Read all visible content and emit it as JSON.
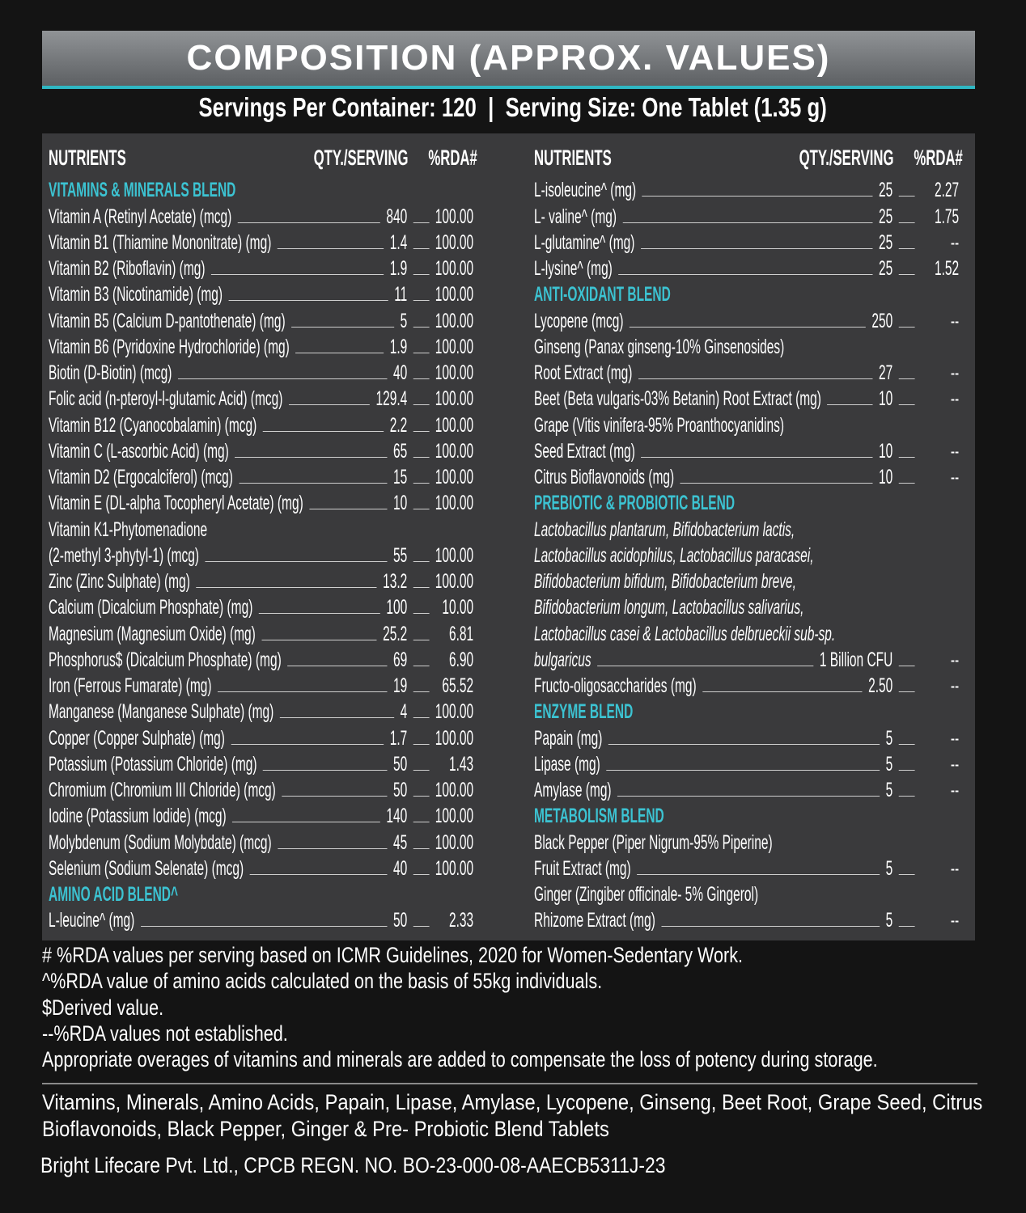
{
  "header": {
    "title": "COMPOSITION (APPROX. VALUES)",
    "subtitle": "Servings Per Container: 120  |  Serving Size: One Tablet (1.35 g)"
  },
  "table": {
    "columns": [
      {
        "headers": [
          "NUTRIENTS",
          "QTY./SERVING",
          "%RDA#"
        ],
        "rows": [
          {
            "section": "VITAMINS & MINERALS BLEND"
          },
          {
            "name": "Vitamin A (Retinyl Acetate) (mcg)",
            "qty": "840",
            "rda": "100.00"
          },
          {
            "name": "Vitamin B1 (Thiamine Mononitrate) (mg)",
            "qty": "1.4",
            "rda": "100.00"
          },
          {
            "name": "Vitamin B2 (Riboflavin) (mg)",
            "qty": "1.9",
            "rda": "100.00"
          },
          {
            "name": "Vitamin B3 (Nicotinamide) (mg)",
            "qty": "11",
            "rda": "100.00"
          },
          {
            "name": "Vitamin B5 (Calcium D-pantothenate) (mg)",
            "qty": "5",
            "rda": "100.00"
          },
          {
            "name": "Vitamin B6 (Pyridoxine Hydrochloride) (mg)",
            "qty": "1.9",
            "rda": "100.00"
          },
          {
            "name": "Biotin (D-Biotin) (mcg)",
            "qty": "40",
            "rda": "100.00"
          },
          {
            "name": "Folic acid (n-pteroyl-l-glutamic Acid) (mcg)",
            "qty": "129.4",
            "rda": "100.00"
          },
          {
            "name": "Vitamin B12 (Cyanocobalamin) (mcg)",
            "qty": "2.2",
            "rda": "100.00"
          },
          {
            "name": "Vitamin C (L-ascorbic Acid) (mg)",
            "qty": "65",
            "rda": "100.00"
          },
          {
            "name": "Vitamin D2 (Ergocalciferol) (mcg)",
            "qty": "15",
            "rda": "100.00"
          },
          {
            "name": "Vitamin E (DL-alpha Tocopheryl Acetate) (mg)",
            "qty": "10",
            "rda": "100.00"
          },
          {
            "name": "Vitamin K1-Phytomenadione"
          },
          {
            "name": "(2-methyl 3-phytyl-1) (mcg)",
            "qty": "55",
            "rda": "100.00"
          },
          {
            "name": "Zinc (Zinc Sulphate) (mg)",
            "qty": "13.2",
            "rda": "100.00"
          },
          {
            "name": "Calcium (Dicalcium Phosphate) (mg)",
            "qty": "100",
            "rda": "10.00"
          },
          {
            "name": "Magnesium (Magnesium Oxide) (mg)",
            "qty": "25.2",
            "rda": "6.81"
          },
          {
            "name": "Phosphorus$ (Dicalcium Phosphate) (mg)",
            "qty": "69",
            "rda": "6.90"
          },
          {
            "name": "Iron (Ferrous Fumarate) (mg)",
            "qty": "19",
            "rda": "65.52"
          },
          {
            "name": "Manganese (Manganese Sulphate) (mg)",
            "qty": "4",
            "rda": "100.00"
          },
          {
            "name": "Copper (Copper Sulphate) (mg)",
            "qty": "1.7",
            "rda": "100.00"
          },
          {
            "name": "Potassium (Potassium Chloride) (mg)",
            "qty": "50",
            "rda": "1.43"
          },
          {
            "name": "Chromium (Chromium III Chloride) (mcg)",
            "qty": "50",
            "rda": "100.00"
          },
          {
            "name": "Iodine (Potassium Iodide) (mcg)",
            "qty": "140",
            "rda": "100.00"
          },
          {
            "name": "Molybdenum (Sodium Molybdate) (mcg)",
            "qty": "45",
            "rda": "100.00"
          },
          {
            "name": "Selenium (Sodium Selenate) (mcg)",
            "qty": "40",
            "rda": "100.00"
          },
          {
            "section": "AMINO ACID BLEND^"
          },
          {
            "name": "L-leucine^ (mg)",
            "qty": "50",
            "rda": "2.33"
          }
        ]
      },
      {
        "headers": [
          "NUTRIENTS",
          "QTY./SERVING",
          "%RDA#"
        ],
        "rows": [
          {
            "name": "L-isoleucine^ (mg)",
            "qty": "25",
            "rda": "2.27"
          },
          {
            "name": "L- valine^ (mg)",
            "qty": "25",
            "rda": "1.75"
          },
          {
            "name": "L-glutamine^ (mg)",
            "qty": "25",
            "rda": "--"
          },
          {
            "name": "L-lysine^ (mg)",
            "qty": "25",
            "rda": "1.52"
          },
          {
            "section": "ANTI-OXIDANT BLEND"
          },
          {
            "name": "Lycopene (mcg)",
            "qty": "250",
            "rda": "--"
          },
          {
            "name": "Ginseng (Panax ginseng-10% Ginsenosides)"
          },
          {
            "name": "Root Extract (mg)",
            "qty": "27",
            "rda": "--"
          },
          {
            "name": "Beet (Beta vulgaris-03% Betanin) Root Extract (mg)",
            "qty": "10",
            "rda": "--"
          },
          {
            "name": "Grape (Vitis vinifera-95% Proanthocyanidins)"
          },
          {
            "name": "Seed Extract (mg)",
            "qty": "10",
            "rda": "--"
          },
          {
            "name": "Citrus Bioflavonoids (mg)",
            "qty": "10",
            "rda": "--"
          },
          {
            "section": "PREBIOTIC & PROBIOTIC BLEND"
          },
          {
            "name": "Lactobacillus plantarum, Bifidobacterium lactis,",
            "italic": true
          },
          {
            "name": "Lactobacillus acidophilus, Lactobacillus paracasei,",
            "italic": true
          },
          {
            "name": "Bifidobacterium bifidum, Bifidobacterium breve,",
            "italic": true
          },
          {
            "name": "Bifidobacterium longum, Lactobacillus salivarius,",
            "italic": true
          },
          {
            "name": "Lactobacillus casei & Lactobacillus delbrueckii sub-sp.",
            "italic": true
          },
          {
            "name": "bulgaricus",
            "italic": true,
            "qty": "1 Billion CFU",
            "rda": "--"
          },
          {
            "name": "Fructo-oligosaccharides (mg)",
            "qty": "2.50",
            "rda": "--"
          },
          {
            "section": "ENZYME BLEND"
          },
          {
            "name": "Papain (mg)",
            "qty": "5",
            "rda": "--"
          },
          {
            "name": "Lipase (mg)",
            "qty": "5",
            "rda": "--"
          },
          {
            "name": "Amylase (mg)",
            "qty": "5",
            "rda": "--"
          },
          {
            "section": "METABOLISM BLEND"
          },
          {
            "name": "Black Pepper (Piper Nigrum-95% Piperine)"
          },
          {
            "name": "Fruit Extract (mg)",
            "qty": "5",
            "rda": "--"
          },
          {
            "name": "Ginger (Zingiber officinale- 5% Gingerol)"
          },
          {
            "name": "Rhizome Extract (mg)",
            "qty": "5",
            "rda": "--"
          }
        ]
      }
    ]
  },
  "footnotes": [
    "# %RDA values per serving based on ICMR Guidelines, 2020 for Women-Sedentary Work.",
    "^%RDA value of amino acids calculated on the basis of 55kg individuals.",
    "$Derived value.",
    "--%RDA values not established.",
    "Appropriate overages of vitamins and minerals are added to compensate the loss of potency during storage."
  ],
  "ingredients": [
    "Vitamins, Minerals, Amino Acids, Papain, Lipase, Amylase, Lycopene, Ginseng, Beet Root, Grape Seed, Citrus",
    "Bioflavonoids, Black Pepper, Ginger & Pre- Probiotic Blend Tablets"
  ],
  "company": "Bright Lifecare Pvt. Ltd., CPCB REGN. NO. BO-23-000-08-AAECB5311J-23"
}
